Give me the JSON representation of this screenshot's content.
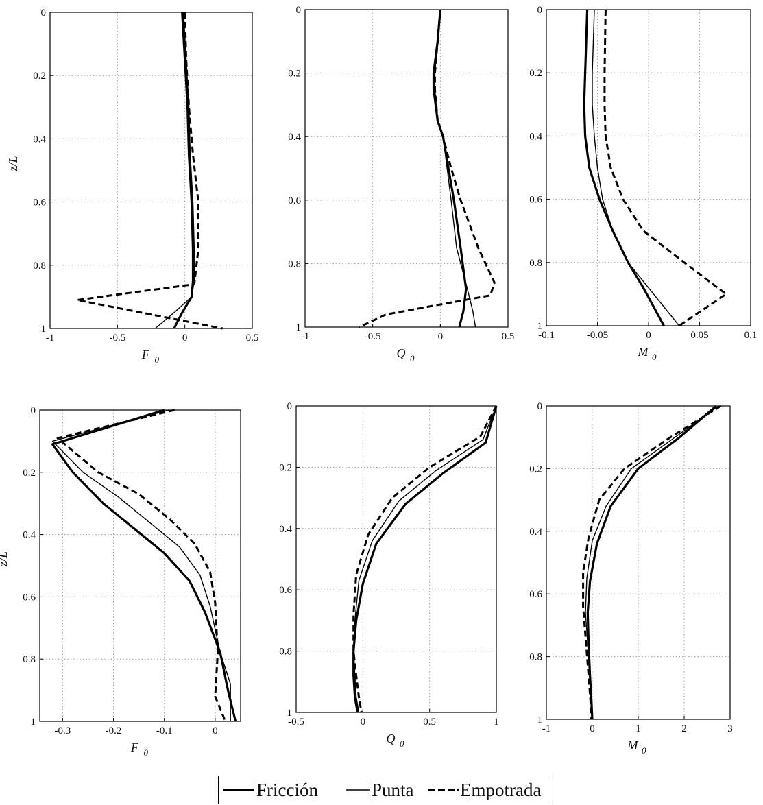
{
  "chart_data": [
    {
      "type": "line",
      "xlabel": "F",
      "xlabel_sub": "0",
      "ylabel": "z/L",
      "xlim": [
        -1,
        0.5
      ],
      "ylim": [
        0,
        1
      ],
      "y_inverted": true,
      "xticks": [
        "-1",
        "-0.5",
        "0",
        "0.5"
      ],
      "yticks": [
        "0",
        "0.2",
        "0.4",
        "0.6",
        "0.8",
        "1"
      ],
      "grid": true,
      "series": [
        {
          "name": "Fricción",
          "x": [
            -0.02,
            0.0,
            0.02,
            0.03,
            0.05,
            0.06,
            0.06,
            0.05,
            -0.02,
            -0.08
          ],
          "y": [
            0,
            0.15,
            0.3,
            0.45,
            0.6,
            0.75,
            0.85,
            0.9,
            0.95,
            1.0
          ]
        },
        {
          "name": "Punta",
          "x": [
            -0.01,
            0.01,
            0.03,
            0.04,
            0.06,
            0.07,
            0.07,
            0.05,
            -0.08,
            -0.22
          ],
          "y": [
            0,
            0.15,
            0.3,
            0.45,
            0.6,
            0.75,
            0.85,
            0.9,
            0.95,
            1.0
          ]
        },
        {
          "name": "Empotrada",
          "x": [
            0.0,
            0.01,
            0.03,
            0.06,
            0.1,
            0.1,
            0.07,
            -0.8,
            0.28
          ],
          "y": [
            0,
            0.15,
            0.3,
            0.45,
            0.6,
            0.75,
            0.86,
            0.91,
            1.0
          ]
        }
      ]
    },
    {
      "type": "line",
      "xlabel": "Q",
      "xlabel_sub": "0",
      "ylabel": "",
      "xlim": [
        -1,
        0.5
      ],
      "ylim": [
        0,
        1
      ],
      "y_inverted": true,
      "xticks": [
        "-1",
        "-0.5",
        "0",
        "0.5"
      ],
      "yticks": [
        "0",
        "0.2",
        "0.4",
        "0.6",
        "0.8",
        "1"
      ],
      "grid": true,
      "series": [
        {
          "name": "Fricción",
          "x": [
            0.0,
            -0.02,
            -0.05,
            -0.05,
            -0.02,
            0.02,
            0.06,
            0.1,
            0.15,
            0.19,
            0.17,
            0.14
          ],
          "y": [
            0,
            0.1,
            0.2,
            0.25,
            0.35,
            0.4,
            0.5,
            0.6,
            0.75,
            0.88,
            0.95,
            1.0
          ]
        },
        {
          "name": "Punta",
          "x": [
            0.0,
            -0.02,
            -0.04,
            -0.04,
            -0.02,
            0.02,
            0.05,
            0.08,
            0.12,
            0.2,
            0.24,
            0.26
          ],
          "y": [
            0,
            0.1,
            0.2,
            0.25,
            0.35,
            0.4,
            0.5,
            0.6,
            0.75,
            0.88,
            0.95,
            1.0
          ]
        },
        {
          "name": "Empotrada",
          "x": [
            0.0,
            -0.02,
            -0.04,
            -0.04,
            -0.02,
            0.02,
            0.08,
            0.15,
            0.28,
            0.4,
            0.37,
            -0.4,
            -0.6
          ],
          "y": [
            0,
            0.1,
            0.2,
            0.25,
            0.35,
            0.4,
            0.5,
            0.6,
            0.75,
            0.86,
            0.9,
            0.96,
            1.0
          ]
        }
      ]
    },
    {
      "type": "line",
      "xlabel": "M",
      "xlabel_sub": "0",
      "ylabel": "",
      "xlim": [
        -0.1,
        0.1
      ],
      "ylim": [
        0,
        1
      ],
      "y_inverted": true,
      "xticks": [
        "-0.1",
        "-0.05",
        "0",
        "0.05",
        "0.1"
      ],
      "yticks": [
        "0",
        "0.2",
        "0.4",
        "0.6",
        "0.8",
        "1"
      ],
      "grid": true,
      "series": [
        {
          "name": "Fricción",
          "x": [
            -0.06,
            -0.062,
            -0.063,
            -0.062,
            -0.058,
            -0.048,
            -0.035,
            -0.02,
            -0.005,
            0.015
          ],
          "y": [
            0,
            0.2,
            0.3,
            0.4,
            0.5,
            0.6,
            0.7,
            0.8,
            0.88,
            1.0
          ]
        },
        {
          "name": "Punta",
          "x": [
            -0.053,
            -0.055,
            -0.055,
            -0.053,
            -0.05,
            -0.045,
            -0.035,
            -0.02,
            0.0,
            0.03
          ],
          "y": [
            0,
            0.2,
            0.3,
            0.4,
            0.5,
            0.6,
            0.7,
            0.8,
            0.88,
            1.0
          ]
        },
        {
          "name": "Empotrada",
          "x": [
            -0.042,
            -0.043,
            -0.043,
            -0.042,
            -0.037,
            -0.025,
            -0.005,
            0.035,
            0.076,
            0.03
          ],
          "y": [
            0,
            0.2,
            0.3,
            0.4,
            0.5,
            0.6,
            0.7,
            0.8,
            0.9,
            1.0
          ]
        }
      ]
    },
    {
      "type": "line",
      "xlabel": "F",
      "xlabel_sub": "0",
      "ylabel": "z/L",
      "xlim": [
        -0.345,
        0.05
      ],
      "ylim": [
        0,
        1
      ],
      "y_inverted": true,
      "xticks": [
        "-0.3",
        "-0.2",
        "-0.1",
        "0"
      ],
      "xtick_values": [
        -0.3,
        -0.2,
        -0.1,
        0
      ],
      "yticks": [
        "0",
        "0.2",
        "0.4",
        "0.6",
        "0.8",
        "1"
      ],
      "grid": true,
      "series": [
        {
          "name": "Fricción",
          "x": [
            -0.1,
            -0.32,
            -0.28,
            -0.22,
            -0.16,
            -0.1,
            -0.05,
            -0.02,
            0.01,
            0.025,
            0.04
          ],
          "y": [
            0,
            0.11,
            0.2,
            0.3,
            0.38,
            0.46,
            0.55,
            0.65,
            0.78,
            0.9,
            1.0
          ]
        },
        {
          "name": "Punta",
          "x": [
            -0.09,
            -0.32,
            -0.26,
            -0.19,
            -0.13,
            -0.07,
            -0.03,
            -0.01,
            0.01,
            0.03,
            0.03
          ],
          "y": [
            0,
            0.1,
            0.2,
            0.28,
            0.36,
            0.44,
            0.53,
            0.63,
            0.78,
            0.88,
            1.0
          ]
        },
        {
          "name": "Empotrada",
          "x": [
            -0.08,
            -0.31,
            -0.23,
            -0.15,
            -0.09,
            -0.04,
            -0.01,
            0.0,
            0.005,
            0.0,
            0.02
          ],
          "y": [
            0,
            0.09,
            0.2,
            0.27,
            0.35,
            0.43,
            0.52,
            0.62,
            0.78,
            0.92,
            1.0
          ]
        }
      ]
    },
    {
      "type": "line",
      "xlabel": "Q",
      "xlabel_sub": "0",
      "ylabel": "",
      "xlim": [
        -0.5,
        1
      ],
      "ylim": [
        0,
        1
      ],
      "y_inverted": true,
      "xticks": [
        "-0.5",
        "0",
        "0.5",
        "1"
      ],
      "yticks": [
        "0",
        "0.2",
        "0.4",
        "0.6",
        "0.8",
        "1"
      ],
      "grid": true,
      "series": [
        {
          "name": "Fricción",
          "x": [
            1.0,
            0.92,
            0.6,
            0.32,
            0.1,
            0.0,
            -0.05,
            -0.07,
            -0.07,
            -0.06,
            -0.04
          ],
          "y": [
            0,
            0.12,
            0.22,
            0.32,
            0.45,
            0.58,
            0.7,
            0.8,
            0.88,
            0.95,
            1.0
          ]
        },
        {
          "name": "Punta",
          "x": [
            1.0,
            0.9,
            0.55,
            0.27,
            0.07,
            -0.03,
            -0.06,
            -0.07,
            -0.06,
            -0.05,
            -0.03
          ],
          "y": [
            0,
            0.11,
            0.21,
            0.31,
            0.44,
            0.57,
            0.7,
            0.8,
            0.88,
            0.95,
            1.0
          ]
        },
        {
          "name": "Empotrada",
          "x": [
            1.0,
            0.88,
            0.5,
            0.22,
            0.04,
            -0.05,
            -0.07,
            -0.07,
            -0.05,
            -0.03,
            -0.01
          ],
          "y": [
            0,
            0.1,
            0.2,
            0.3,
            0.42,
            0.55,
            0.68,
            0.8,
            0.88,
            0.95,
            1.0
          ]
        }
      ]
    },
    {
      "type": "line",
      "xlabel": "M",
      "xlabel_sub": "0",
      "ylabel": "",
      "xlim": [
        -1,
        3
      ],
      "ylim": [
        0,
        1
      ],
      "y_inverted": true,
      "xticks": [
        "-1",
        "0",
        "1",
        "2",
        "3"
      ],
      "yticks": [
        "0",
        "0.2",
        "0.4",
        "0.6",
        "0.8",
        "1"
      ],
      "grid": true,
      "series": [
        {
          "name": "Fricción",
          "x": [
            2.7,
            1.9,
            1.0,
            0.4,
            0.1,
            -0.05,
            -0.1,
            -0.08,
            -0.05,
            -0.02,
            0.0
          ],
          "y": [
            0,
            0.1,
            0.2,
            0.32,
            0.44,
            0.56,
            0.66,
            0.76,
            0.86,
            0.94,
            1.0
          ]
        },
        {
          "name": "Punta",
          "x": [
            2.75,
            1.8,
            0.85,
            0.3,
            0.0,
            -0.12,
            -0.15,
            -0.1,
            -0.06,
            -0.03,
            -0.01
          ],
          "y": [
            0,
            0.1,
            0.2,
            0.32,
            0.43,
            0.55,
            0.66,
            0.76,
            0.86,
            0.94,
            1.0
          ]
        },
        {
          "name": "Empotrada",
          "x": [
            2.8,
            1.7,
            0.7,
            0.15,
            -0.08,
            -0.2,
            -0.2,
            -0.14,
            -0.08,
            -0.04,
            -0.02
          ],
          "y": [
            0,
            0.1,
            0.2,
            0.3,
            0.42,
            0.53,
            0.64,
            0.75,
            0.86,
            0.94,
            1.0
          ]
        }
      ]
    }
  ],
  "legend": {
    "placement": "bottom-center",
    "items": [
      {
        "label": "Fricción",
        "style": "thick-solid"
      },
      {
        "label": "Punta",
        "style": "thin-solid"
      },
      {
        "label": "Empotrada",
        "style": "thick-dashed"
      }
    ]
  }
}
